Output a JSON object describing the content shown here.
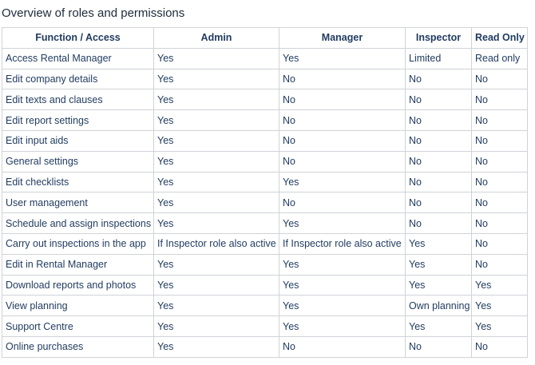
{
  "title": "Overview of roles and permissions",
  "table": {
    "header": [
      "Function / Access",
      "Admin",
      "Manager",
      "Inspector",
      "Read Only"
    ],
    "rows": [
      [
        "Access Rental Manager",
        "Yes",
        "Yes",
        "Limited",
        "Read only"
      ],
      [
        "Edit company details",
        "Yes",
        "No",
        "No",
        "No"
      ],
      [
        "Edit texts and clauses",
        "Yes",
        "No",
        "No",
        "No"
      ],
      [
        "Edit report settings",
        "Yes",
        "No",
        "No",
        "No"
      ],
      [
        "Edit input aids",
        "Yes",
        "No",
        "No",
        "No"
      ],
      [
        "General settings",
        "Yes",
        "No",
        "No",
        "No"
      ],
      [
        "Edit checklists",
        "Yes",
        "Yes",
        "No",
        "No"
      ],
      [
        "User management",
        "Yes",
        "No",
        "No",
        "No"
      ],
      [
        "Schedule and assign inspections",
        "Yes",
        "Yes",
        "No",
        "No"
      ],
      [
        "Carry out inspections in the app",
        "If Inspector role also active",
        "If Inspector role also active",
        "Yes",
        "No"
      ],
      [
        "Edit in Rental Manager",
        "Yes",
        "Yes",
        "Yes",
        "No"
      ],
      [
        "Download reports and photos",
        "Yes",
        "Yes",
        "Yes",
        "Yes"
      ],
      [
        "View planning",
        "Yes",
        "Yes",
        "Own planning",
        "Yes"
      ],
      [
        "Support Centre",
        "Yes",
        "Yes",
        "Yes",
        "Yes"
      ],
      [
        "Online purchases",
        "Yes",
        "No",
        "No",
        "No"
      ]
    ]
  }
}
